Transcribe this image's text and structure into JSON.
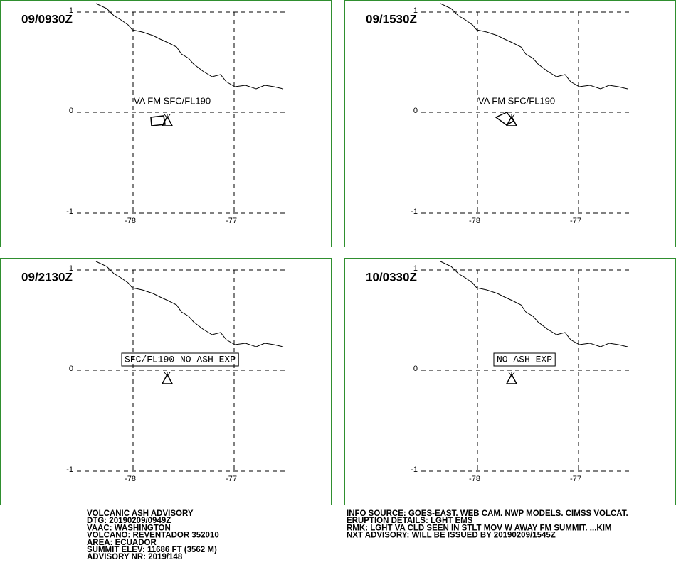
{
  "panels": [
    {
      "time": "09/0930Z",
      "label": "VA FM SFC/FL190",
      "boxed": false
    },
    {
      "time": "09/1530Z",
      "label": "VA FM SFC/FL190",
      "boxed": false
    },
    {
      "time": "09/2130Z",
      "label": "SFC/FL190 NO ASH EXP",
      "boxed": true
    },
    {
      "time": "10/0330Z",
      "label": "NO ASH EXP",
      "boxed": true
    }
  ],
  "lat_labels": [
    "1",
    "0",
    "-1"
  ],
  "lon_labels": [
    "-78",
    "-77"
  ],
  "footer_left": [
    "VOLCANIC ASH ADVISORY",
    "DTG: 20190209/0949Z",
    "VAAC: WASHINGTON",
    "VOLCANO: REVENTADOR 352010",
    "AREA: ECUADOR",
    "SUMMIT ELEV: 11686 FT (3562 M)",
    "ADVISORY NR: 2019/148"
  ],
  "footer_right": [
    "INFO SOURCE: GOES-EAST. WEB CAM. NWP MODELS. CIMSS VOLCAT.",
    "ERUPTION DETAILS: LGHT EMS",
    "RMK: LGHT VA CLD SEEN IN STLT MOV W AWAY FM SUMMIT. ...KIM",
    "NXT ADVISORY: WILL BE ISSUED BY 20190209/1545Z"
  ]
}
